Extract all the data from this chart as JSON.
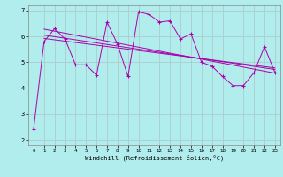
{
  "xlabel": "Windchill (Refroidissement éolien,°C)",
  "background_color": "#b2eded",
  "grid_color": "#aacccc",
  "line_color": "#aa00aa",
  "xlim": [
    -0.5,
    23.5
  ],
  "ylim": [
    1.8,
    7.2
  ],
  "yticks": [
    2,
    3,
    4,
    5,
    6,
    7
  ],
  "xticks": [
    0,
    1,
    2,
    3,
    4,
    5,
    6,
    7,
    8,
    9,
    10,
    11,
    12,
    13,
    14,
    15,
    16,
    17,
    18,
    19,
    20,
    21,
    22,
    23
  ],
  "series1_x": [
    0,
    1,
    2,
    3,
    4,
    5,
    6,
    7,
    8,
    9,
    10,
    11,
    12,
    13,
    14,
    15,
    16,
    17,
    18,
    19,
    20,
    21,
    22,
    23
  ],
  "series1_y": [
    2.4,
    5.8,
    6.3,
    5.9,
    4.9,
    4.9,
    4.5,
    6.55,
    5.7,
    4.45,
    6.95,
    6.85,
    6.55,
    6.6,
    5.9,
    6.1,
    5.0,
    4.85,
    4.45,
    4.1,
    4.1,
    4.6,
    5.6,
    4.6
  ],
  "trend_lines": [
    {
      "x": [
        1,
        23
      ],
      "y": [
        6.28,
        4.58
      ]
    },
    {
      "x": [
        1,
        23
      ],
      "y": [
        6.05,
        4.72
      ]
    },
    {
      "x": [
        1,
        23
      ],
      "y": [
        5.92,
        4.78
      ]
    }
  ]
}
